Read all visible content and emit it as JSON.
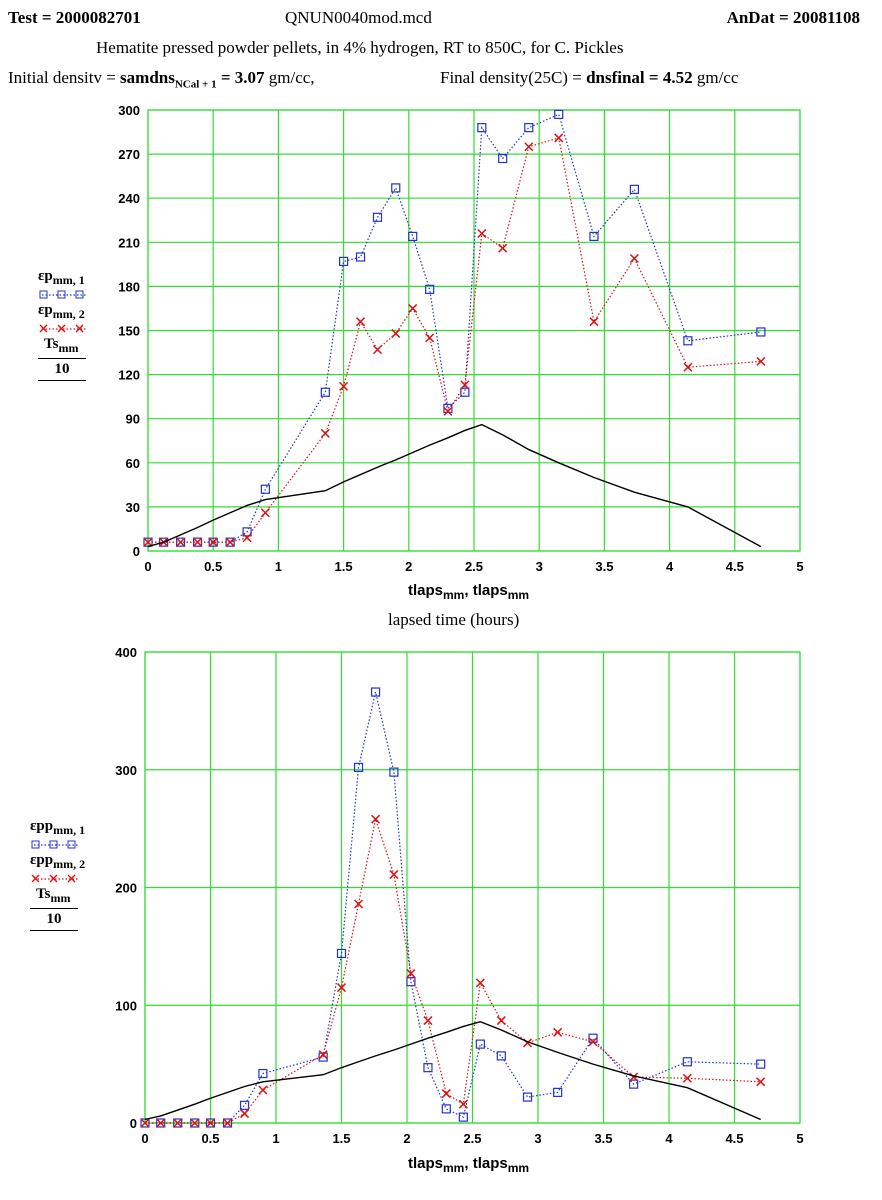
{
  "header": {
    "test_label": "Test = ",
    "test_value": "2000082701",
    "file_name": "QNUN0040mod.mcd",
    "andat_label": "AnDat = ",
    "andat_value": "20081108",
    "description": "Hematite pressed powder pellets, in 4% hydrogen,  RT to 850C,  for C. Pickles",
    "initial_label": "Initial densitv = ",
    "initial_var": "samdns",
    "initial_sub": "NCal + 1",
    "initial_value": " = 3.07",
    "initial_unit": " gm/cc,",
    "final_label": "Final density(25C) = ",
    "final_var": "dnsfinal",
    "final_value": " = 4.52",
    "final_unit": " gm/cc"
  },
  "legend1": {
    "s1_var": "εp",
    "s1_sub": "mm, 1",
    "s2_var": "εp",
    "s2_sub": "mm, 2",
    "s3_var": "Ts",
    "s3_sub": "mm",
    "divisor": "10"
  },
  "legend2": {
    "s1_var": "εpp",
    "s1_sub": "mm, 1",
    "s2_var": "εpp",
    "s2_sub": "mm, 2",
    "s3_var": "Ts",
    "s3_sub": "mm",
    "divisor": "10"
  },
  "xaxis1": {
    "var": "tlaps",
    "sub1": "mm",
    "sep": ", ",
    "var2": "tlaps",
    "sub2": "mm",
    "title": "lapsed time (hours)"
  },
  "xaxis2": {
    "var": "tlaps",
    "sub1": "mm",
    "sep": ", ",
    "var2": "tlaps",
    "sub2": "mm"
  },
  "colors": {
    "grid": "#33dd33",
    "series1": "#2233cc",
    "series2": "#dd1111",
    "series3": "#000000"
  },
  "chart_data": [
    {
      "type": "line",
      "title": "",
      "xlabel": "tlaps_mm, tlaps_mm",
      "ylabel": "εp_mm,1 ; εp_mm,2 ; Ts_mm/10",
      "xlim": [
        0,
        5
      ],
      "ylim": [
        0,
        300
      ],
      "xticks": [
        0,
        0.5,
        1,
        1.5,
        2,
        2.5,
        3,
        3.5,
        4,
        4.5,
        5
      ],
      "xtick_labels": [
        "0",
        "0.5",
        "1",
        "1.5",
        "2",
        "2.5",
        "3",
        "3.5",
        "4",
        "4.5",
        "5"
      ],
      "yticks": [
        0,
        30,
        60,
        90,
        120,
        150,
        180,
        210,
        240,
        270,
        300
      ],
      "ytick_labels": [
        "0",
        "30",
        "60",
        "90",
        "120",
        "150",
        "180",
        "210",
        "240",
        "270",
        "300"
      ],
      "series": [
        {
          "name": "εp mm,1",
          "marker": "square",
          "style": "dotted",
          "x": [
            0,
            0.12,
            0.25,
            0.38,
            0.5,
            0.63,
            0.76,
            0.9,
            1.36,
            1.5,
            1.63,
            1.76,
            1.9,
            2.03,
            2.16,
            2.3,
            2.43,
            2.56,
            2.72,
            2.92,
            3.15,
            3.42,
            3.73,
            4.14,
            4.7
          ],
          "y": [
            6,
            6,
            6,
            6,
            6,
            6,
            13,
            42,
            108,
            197,
            200,
            227,
            247,
            214,
            178,
            97,
            108,
            288,
            267,
            288,
            297,
            214,
            246,
            143,
            149
          ]
        },
        {
          "name": "εp mm,2",
          "marker": "x",
          "style": "dotted",
          "x": [
            0,
            0.12,
            0.25,
            0.38,
            0.5,
            0.63,
            0.76,
            0.9,
            1.36,
            1.5,
            1.63,
            1.76,
            1.9,
            2.03,
            2.16,
            2.3,
            2.43,
            2.56,
            2.72,
            2.92,
            3.15,
            3.42,
            3.73,
            4.14,
            4.7
          ],
          "y": [
            6,
            6,
            6,
            6,
            6,
            6,
            9,
            26,
            80,
            112,
            156,
            137,
            148,
            165,
            145,
            95,
            113,
            216,
            206,
            275,
            281,
            156,
            199,
            125,
            129
          ]
        },
        {
          "name": "Ts mm / 10",
          "marker": "none",
          "style": "solid",
          "x": [
            0,
            0.12,
            0.25,
            0.38,
            0.5,
            0.63,
            0.76,
            0.9,
            1.36,
            1.5,
            1.63,
            1.76,
            1.9,
            2.03,
            2.16,
            2.3,
            2.43,
            2.56,
            2.72,
            2.92,
            3.15,
            3.42,
            3.73,
            4.14,
            4.7
          ],
          "y": [
            3,
            6,
            11,
            16,
            21,
            26,
            31,
            35,
            41,
            47,
            52,
            57,
            62,
            67,
            72,
            77,
            82,
            86,
            79,
            69,
            60,
            50,
            40,
            30,
            3
          ]
        }
      ]
    },
    {
      "type": "line",
      "title": "",
      "xlabel": "tlaps_mm, tlaps_mm",
      "ylabel": "εpp_mm,1 ; εpp_mm,2 ; Ts_mm/10",
      "xlim": [
        0,
        5
      ],
      "ylim": [
        0,
        400
      ],
      "xticks": [
        0,
        0.5,
        1,
        1.5,
        2,
        2.5,
        3,
        3.5,
        4,
        4.5,
        5
      ],
      "xtick_labels": [
        "0",
        "0.5",
        "1",
        "1.5",
        "2",
        "2.5",
        "3",
        "3.5",
        "4",
        "4.5",
        "5"
      ],
      "yticks": [
        0,
        100,
        200,
        300,
        400
      ],
      "ytick_labels": [
        "0",
        "100",
        "200",
        "300",
        "400"
      ],
      "series": [
        {
          "name": "εpp mm,1",
          "marker": "square",
          "style": "dotted",
          "x": [
            0,
            0.12,
            0.25,
            0.38,
            0.5,
            0.63,
            0.76,
            0.9,
            1.36,
            1.5,
            1.63,
            1.76,
            1.9,
            2.03,
            2.16,
            2.3,
            2.43,
            2.56,
            2.72,
            2.92,
            3.15,
            3.42,
            3.73,
            4.14,
            4.7
          ],
          "y": [
            0,
            0,
            0,
            0,
            0,
            0,
            15,
            42,
            56,
            144,
            302,
            366,
            298,
            120,
            47,
            12,
            5,
            67,
            57,
            22,
            26,
            72,
            33,
            52,
            50
          ]
        },
        {
          "name": "εpp mm,2",
          "marker": "x",
          "style": "dotted",
          "x": [
            0,
            0.12,
            0.25,
            0.38,
            0.5,
            0.63,
            0.76,
            0.9,
            1.36,
            1.5,
            1.63,
            1.76,
            1.9,
            2.03,
            2.16,
            2.3,
            2.43,
            2.56,
            2.72,
            2.92,
            3.15,
            3.42,
            3.73,
            4.14,
            4.7
          ],
          "y": [
            0,
            0,
            0,
            0,
            0,
            0,
            8,
            28,
            58,
            115,
            186,
            258,
            211,
            127,
            87,
            25,
            16,
            119,
            87,
            68,
            77,
            69,
            39,
            38,
            35
          ]
        },
        {
          "name": "Ts mm / 10",
          "marker": "none",
          "style": "solid",
          "x": [
            0,
            0.12,
            0.25,
            0.38,
            0.5,
            0.63,
            0.76,
            0.9,
            1.36,
            1.5,
            1.63,
            1.76,
            1.9,
            2.03,
            2.16,
            2.3,
            2.43,
            2.56,
            2.72,
            2.92,
            3.15,
            3.42,
            3.73,
            4.14,
            4.7
          ],
          "y": [
            3,
            6,
            11,
            16,
            21,
            26,
            31,
            35,
            41,
            47,
            52,
            57,
            62,
            67,
            72,
            77,
            82,
            86,
            79,
            69,
            60,
            50,
            40,
            30,
            3
          ]
        }
      ]
    }
  ]
}
